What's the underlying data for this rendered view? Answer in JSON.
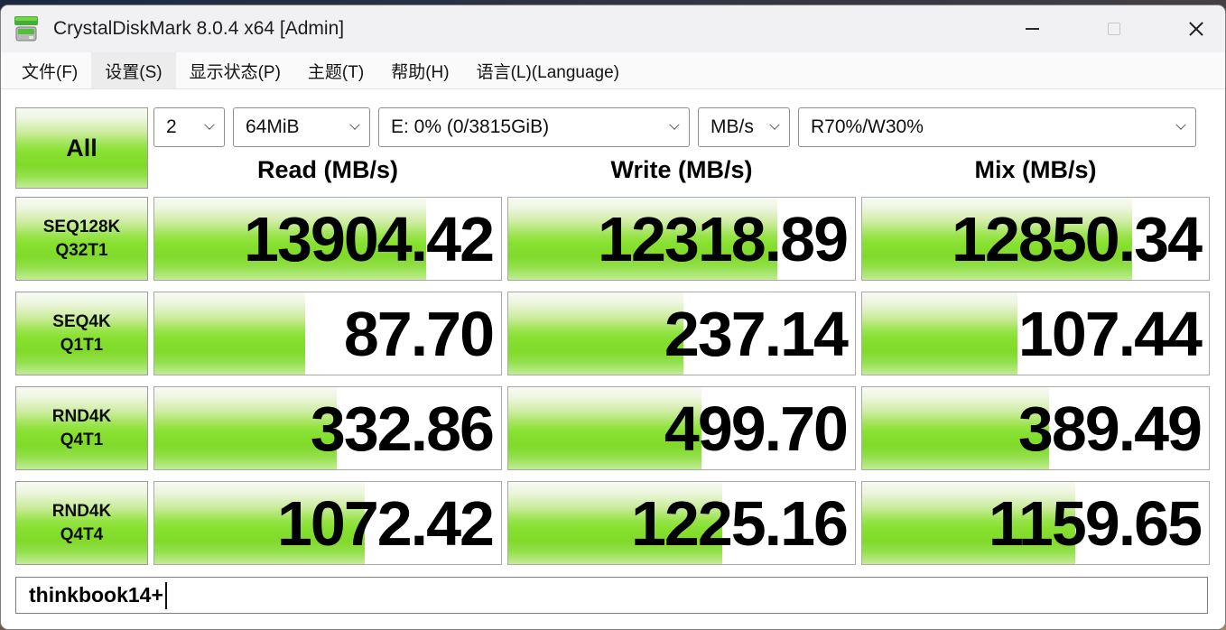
{
  "window": {
    "title": "CrystalDiskMark 8.0.4 x64 [Admin]"
  },
  "menu": {
    "items": [
      {
        "label": "文件(F)"
      },
      {
        "label": "设置(S)"
      },
      {
        "label": "显示状态(P)"
      },
      {
        "label": "主题(T)"
      },
      {
        "label": "帮助(H)"
      },
      {
        "label": "语言(L)(Language)"
      }
    ]
  },
  "controls": {
    "all": "All",
    "count": "2",
    "size": "64MiB",
    "drive": "E: 0% (0/3815GiB)",
    "unit": "MB/s",
    "mix": "R70%/W30%"
  },
  "columns": [
    "Read (MB/s)",
    "Write (MB/s)",
    "Mix (MB/s)"
  ],
  "rows": [
    {
      "label1": "SEQ128K",
      "label2": "Q32T1",
      "cells": [
        {
          "value": "13904.42",
          "fill_pct": 78.5
        },
        {
          "value": "12318.89",
          "fill_pct": 77.6
        },
        {
          "value": "12850.34",
          "fill_pct": 77.9
        }
      ]
    },
    {
      "label1": "SEQ4K",
      "label2": "Q1T1",
      "cells": [
        {
          "value": "87.70",
          "fill_pct": 43.5
        },
        {
          "value": "237.14",
          "fill_pct": 50.4
        },
        {
          "value": "107.44",
          "fill_pct": 44.9
        }
      ]
    },
    {
      "label1": "RND4K",
      "label2": "Q4T1",
      "cells": [
        {
          "value": "332.86",
          "fill_pct": 52.7
        },
        {
          "value": "499.70",
          "fill_pct": 55.6
        },
        {
          "value": "389.49",
          "fill_pct": 53.8
        }
      ]
    },
    {
      "label1": "RND4K",
      "label2": "Q4T4",
      "cells": [
        {
          "value": "1072.42",
          "fill_pct": 60.8
        },
        {
          "value": "1225.16",
          "fill_pct": 61.7
        },
        {
          "value": "1159.65",
          "fill_pct": 61.4
        }
      ]
    }
  ],
  "comment": {
    "text": "thinkbook14+"
  },
  "colors": {
    "accent_green": "#84DC2B",
    "green_light": "#C3EC97",
    "titlebar_bg": "#F1F1F4",
    "cell_border": "#A9A9A9"
  },
  "icons": {
    "app_icon": "crystaldiskmark-green-disk",
    "combo_chevron": "chevron-down",
    "window_buttons": [
      "minimize",
      "maximize",
      "close"
    ]
  }
}
